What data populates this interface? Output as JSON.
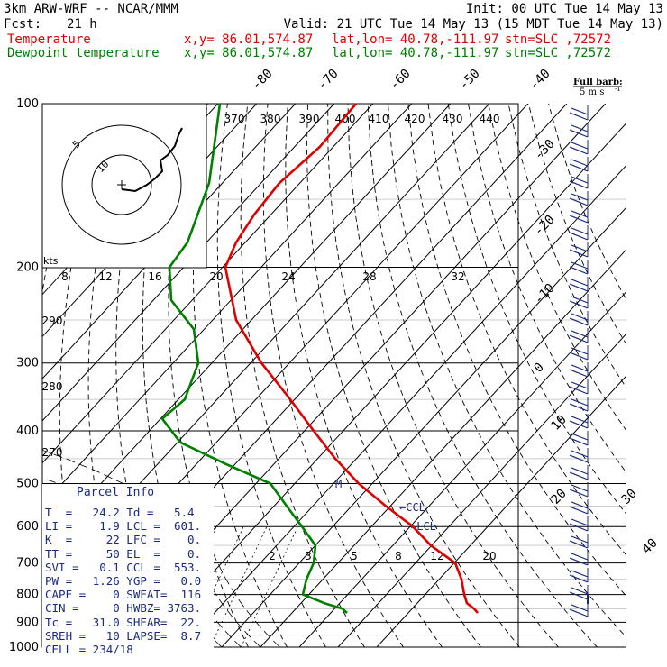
{
  "header": {
    "model": "3km ARW-WRF -- NCAR/MMM",
    "init": "Init: 00 UTC Tue 14 May 13",
    "fcst_label": "Fcst:",
    "fcst_value": "21 h",
    "valid": "Valid: 21 UTC Tue 14 May 13 (15 MDT Tue 14 May 13)",
    "temp_label": "Temperature",
    "dew_label": "Dewpoint temperature",
    "xy": "x,y= 86.01,574.87",
    "latlon": "lat,lon= 40.78,-111.97",
    "stn": "stn=SLC ,72572",
    "colors": {
      "temperature": "#e00000",
      "dewpoint": "#008000",
      "info": "#1a2a80"
    }
  },
  "full_barb": {
    "line1": "Full barb:",
    "line2": "5 m s",
    "sup": "-1"
  },
  "hodograph_units": "kts",
  "parcel_info": {
    "title": "Parcel Info",
    "rows": [
      "T  =   24.2 Td =   5.4",
      "LI =    1.9 LCL =  601.",
      "K  =     22 LFC =    0.",
      "TT =     50 EL  =    0.",
      "SVI =   0.1 CCL =  553.",
      "PW =   1.26 YGP =   0.0",
      "CAPE =    0 SWEAT=  116",
      "CIN =     0 HWBZ= 3763.",
      "Tc =   31.0 SHEAR=  22.",
      "SREH =   10 LAPSE=  8.7",
      "CELL = 234/18"
    ]
  },
  "chart_data": {
    "type": "skew-t log-p sounding",
    "y_axis_pressure_hPa": [
      100,
      200,
      300,
      400,
      500,
      600,
      700,
      800,
      900,
      1000
    ],
    "isotherm_labels_C": [
      "-80",
      "-70",
      "-60",
      "-50",
      "-40",
      "-30",
      "-20",
      "-10",
      "0",
      "10",
      "20",
      "30",
      "40"
    ],
    "theta_labels_K": [
      "370",
      "380",
      "390",
      "400",
      "410",
      "420",
      "430",
      "440"
    ],
    "theta_labels_lower": [
      "290",
      "280",
      "270"
    ],
    "mixing_ratio_labels": [
      "2",
      "3",
      "5",
      "8",
      "12",
      "20"
    ],
    "hodograph_ring_labels": [
      "5",
      "10"
    ],
    "hodograph_speed_labels": [
      "8",
      "12",
      "16",
      "20",
      "24",
      "28",
      "32"
    ],
    "level_marks": [
      {
        "label": "CCL",
        "pressure": 553
      },
      {
        "label": "LCL",
        "pressure": 601
      },
      {
        "label": "M",
        "pressure": 500
      }
    ],
    "series": [
      {
        "name": "Temperature",
        "pressure": [
          100,
          120,
          140,
          160,
          180,
          200,
          250,
          300,
          350,
          400,
          450,
          500,
          550,
          600,
          650,
          700,
          750,
          800,
          830,
          850,
          865
        ],
        "values": [
          -58,
          -58,
          -58,
          -58,
          -58,
          -58,
          -52,
          -46,
          -40,
          -33,
          -25,
          -17,
          -10,
          -4,
          2,
          8,
          13,
          18,
          21,
          23,
          24.2
        ]
      },
      {
        "name": "Dewpoint temperature",
        "pressure": [
          100,
          140,
          180,
          200,
          230,
          260,
          300,
          350,
          380,
          420,
          460,
          500,
          550,
          600,
          650,
          700,
          750,
          800,
          830,
          850,
          865
        ],
        "values": [
          -80,
          -82,
          -84,
          -80,
          -74,
          -70,
          -70,
          -68,
          -64,
          -55,
          -40,
          -28,
          -22,
          -15,
          -10,
          -6,
          -6,
          -7,
          -3,
          3,
          5.4
        ]
      }
    ]
  }
}
